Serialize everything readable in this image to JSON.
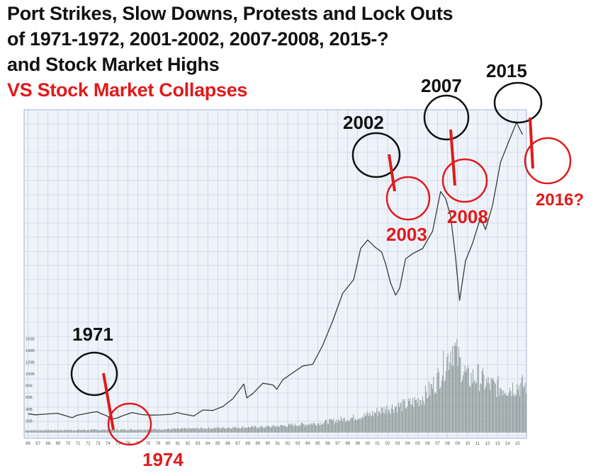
{
  "headline": {
    "line1": "Port Strikes, Slow Downs, Protests and Lock Outs",
    "line2": "of 1971-1972, 2001-2002, 2007-2008, 2015-?",
    "line3": "and Stock Market Highs",
    "line4": "VS Stock Market Collapses"
  },
  "colors": {
    "headline": "#111111",
    "collapse": "#e01a1a",
    "price_line": "#3a3a3a",
    "volume": "#8a9694",
    "grid": "#b9c9df",
    "plot_bg": "#eef3fa"
  },
  "chart_data": {
    "type": "line",
    "x_tick_labels": [
      "66",
      "67",
      "68",
      "69",
      "70",
      "71",
      "72",
      "73",
      "74",
      "75",
      "76",
      "77",
      "78",
      "79",
      "80",
      "81",
      "82",
      "83",
      "84",
      "85",
      "86",
      "87",
      "88",
      "89",
      "90",
      "91",
      "92",
      "93",
      "94",
      "95",
      "96",
      "97",
      "98",
      "99",
      "00",
      "01",
      "02",
      "03",
      "04",
      "05",
      "06",
      "07",
      "08",
      "09",
      "10",
      "11",
      "12",
      "13",
      "14",
      "15"
    ],
    "volume_axis_labels": [
      "160B",
      "140B",
      "120B",
      "100B",
      "80B",
      "60B",
      "40B",
      "20B"
    ],
    "price_series": {
      "x": [
        1966,
        1966.7,
        1967.5,
        1968.9,
        1969.5,
        1970.4,
        1970.9,
        1971.6,
        1972.3,
        1972.9,
        1973.4,
        1973.9,
        1974.4,
        1974.9,
        1975.5,
        1976.4,
        1977.4,
        1978.2,
        1979.2,
        1980.3,
        1980.9,
        1981.5,
        1982.6,
        1983.5,
        1984.5,
        1985.5,
        1986.5,
        1987.6,
        1987.9,
        1988.5,
        1989.5,
        1990.5,
        1990.9,
        1991.5,
        1992.5,
        1993.5,
        1994.5,
        1995.5,
        1996.5,
        1997.5,
        1998.6,
        1999.3,
        2000.0,
        2000.7,
        2001.4,
        2001.8,
        2002.3,
        2002.8,
        2003.2,
        2003.8,
        2004.5,
        2005.5,
        2006.5,
        2007.3,
        2007.8,
        2008.3,
        2008.8,
        2009.2,
        2009.8,
        2010.5,
        2011.3,
        2011.8,
        2012.5,
        2013.3,
        2014.2,
        2014.9,
        2015.5
      ],
      "y": [
        930,
        870,
        900,
        960,
        860,
        700,
        840,
        920,
        1000,
        1050,
        920,
        800,
        620,
        680,
        820,
        1000,
        880,
        850,
        860,
        900,
        1000,
        920,
        800,
        1150,
        1120,
        1350,
        1800,
        2650,
        1850,
        2100,
        2700,
        2600,
        2350,
        2900,
        3300,
        3700,
        3800,
        4900,
        6300,
        7900,
        8700,
        10500,
        11000,
        10600,
        10300,
        9600,
        8500,
        7800,
        8200,
        9900,
        10200,
        10500,
        11500,
        13800,
        13400,
        12400,
        10000,
        7500,
        9800,
        10800,
        12300,
        11600,
        13000,
        15500,
        16800,
        17800,
        17100
      ]
    },
    "volume_series": {
      "x": [
        1966,
        1975,
        1980,
        1985,
        1990,
        1995,
        1998,
        2000,
        2002,
        2004,
        2005,
        2006,
        2007,
        2008,
        2008.5,
        2009,
        2009.5,
        2010,
        2011,
        2012,
        2013,
        2014,
        2015
      ],
      "y": [
        4,
        5,
        6,
        8,
        10,
        16,
        24,
        30,
        42,
        48,
        55,
        68,
        92,
        128,
        150,
        125,
        108,
        92,
        96,
        82,
        78,
        76,
        80
      ]
    },
    "highs": [
      {
        "label": "1971"
      },
      {
        "label": "2002"
      },
      {
        "label": "2007"
      },
      {
        "label": "2015"
      }
    ],
    "collapses": [
      {
        "label": "1974"
      },
      {
        "label": "2003"
      },
      {
        "label": "2008"
      },
      {
        "label": "2016?"
      }
    ]
  }
}
